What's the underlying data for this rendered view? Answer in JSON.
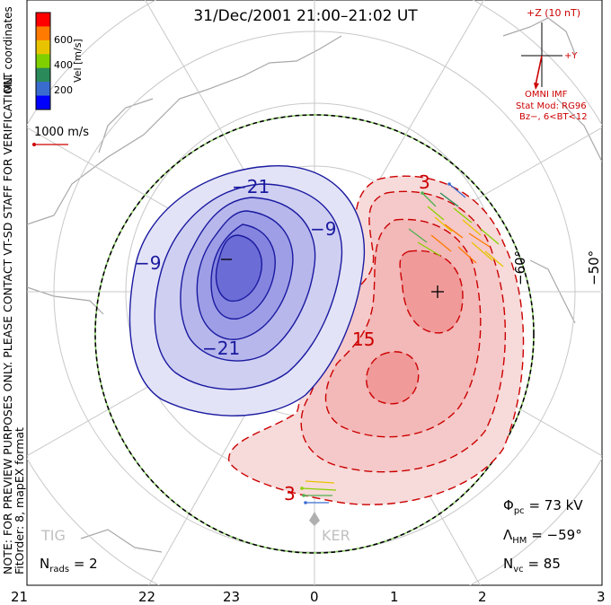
{
  "title": "31/Dec/2001 21:00–21:02 UT",
  "colorbar": {
    "label": "Vel [m/s]",
    "ticks": [
      "600",
      "400",
      "200"
    ],
    "colors": [
      "#ff0000",
      "#ff7a00",
      "#e8c400",
      "#80d000",
      "#2a8a5a",
      "#3a6cd0",
      "#0000ff"
    ]
  },
  "coords_label": "MLT coordinates",
  "ref_vector": "1000 m/s",
  "note": "NOTE: FOR PREVIEW PURPOSES ONLY. PLEASE CONTACT VT-SD STAFF FOR VERIFICATION.",
  "fit_order": "FitOrder: 8, mapEX format",
  "imf": {
    "title": "+Z (10 nT)",
    "plus_y": "+Y",
    "source": "OMNI IMF",
    "model": "Stat Mod: RG96",
    "bin": "Bz−, 6<BT<12"
  },
  "lat_labels": [
    "−60°",
    "−50°"
  ],
  "contours": {
    "negative": [
      "−9",
      "−21",
      "−9",
      "−21"
    ],
    "positive": [
      "15",
      "3",
      "3"
    ]
  },
  "stations": [
    "TIG",
    "KER"
  ],
  "n_rads": {
    "label": "N",
    "sub": "rads",
    "value": "= 2"
  },
  "phi_pc": {
    "label": "Φ",
    "sub": "pc",
    "value": "= 73 kV"
  },
  "lambda_hm": {
    "label": "Λ",
    "sub": "HM",
    "value": "= −59°"
  },
  "n_vc": {
    "label": "N",
    "sub": "vc",
    "value": "= 85"
  },
  "mlt_labels": [
    "21",
    "22",
    "23",
    "0",
    "1",
    "2",
    "3"
  ]
}
